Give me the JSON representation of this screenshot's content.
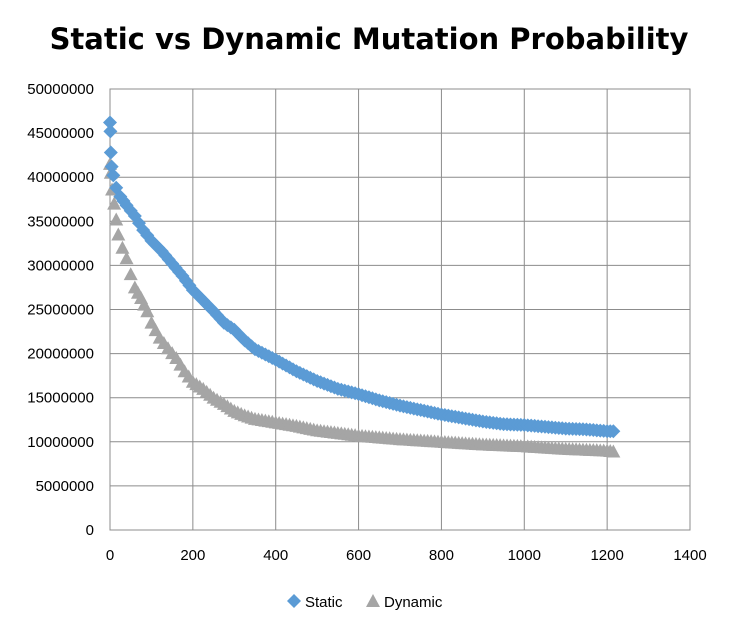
{
  "chart_data": {
    "type": "scatter",
    "title": "Static vs Dynamic Mutation Probability",
    "xlabel": "",
    "ylabel": "",
    "xlim": [
      0,
      1400
    ],
    "ylim": [
      0,
      50000000
    ],
    "x_ticks": [
      "0",
      "200",
      "400",
      "600",
      "800",
      "1000",
      "1200",
      "1400"
    ],
    "y_ticks": [
      "0",
      "5000000",
      "10000000",
      "15000000",
      "20000000",
      "25000000",
      "30000000",
      "35000000",
      "40000000",
      "45000000",
      "50000000"
    ],
    "grid": true,
    "legend_position": "bottom",
    "series": [
      {
        "name": "Static",
        "marker": "diamond",
        "color": "#5b9bd5",
        "x": [
          0,
          1,
          2,
          4,
          8,
          15,
          25,
          40,
          60,
          80,
          100,
          125,
          150,
          175,
          200,
          225,
          250,
          275,
          300,
          325,
          350,
          375,
          400,
          450,
          500,
          550,
          600,
          650,
          700,
          750,
          800,
          850,
          900,
          950,
          1000,
          1050,
          1100,
          1150,
          1200,
          1215
        ],
        "y": [
          46200000,
          45200000,
          42800000,
          41200000,
          40200000,
          38800000,
          37800000,
          36800000,
          35600000,
          34000000,
          32800000,
          31600000,
          30200000,
          28800000,
          27200000,
          26000000,
          24800000,
          23500000,
          22700000,
          21500000,
          20500000,
          19900000,
          19300000,
          18000000,
          16900000,
          16000000,
          15400000,
          14700000,
          14100000,
          13600000,
          13100000,
          12700000,
          12300000,
          12000000,
          11900000,
          11700000,
          11500000,
          11400000,
          11200000,
          11200000
        ]
      },
      {
        "name": "Dynamic",
        "marker": "triangle",
        "color": "#a5a5a5",
        "x": [
          0,
          2,
          5,
          10,
          15,
          20,
          30,
          40,
          50,
          60,
          75,
          90,
          100,
          120,
          140,
          160,
          180,
          200,
          225,
          250,
          275,
          300,
          325,
          350,
          400,
          450,
          500,
          550,
          600,
          700,
          800,
          900,
          1000,
          1100,
          1200,
          1215
        ],
        "y": [
          41500000,
          40500000,
          38600000,
          37000000,
          35200000,
          33500000,
          32000000,
          30800000,
          29000000,
          27500000,
          26300000,
          24800000,
          23500000,
          21800000,
          20600000,
          19500000,
          18000000,
          16800000,
          16000000,
          15000000,
          14300000,
          13500000,
          13000000,
          12600000,
          12200000,
          11800000,
          11300000,
          11000000,
          10700000,
          10300000,
          10000000,
          9700000,
          9500000,
          9200000,
          9000000,
          8900000
        ]
      }
    ]
  }
}
